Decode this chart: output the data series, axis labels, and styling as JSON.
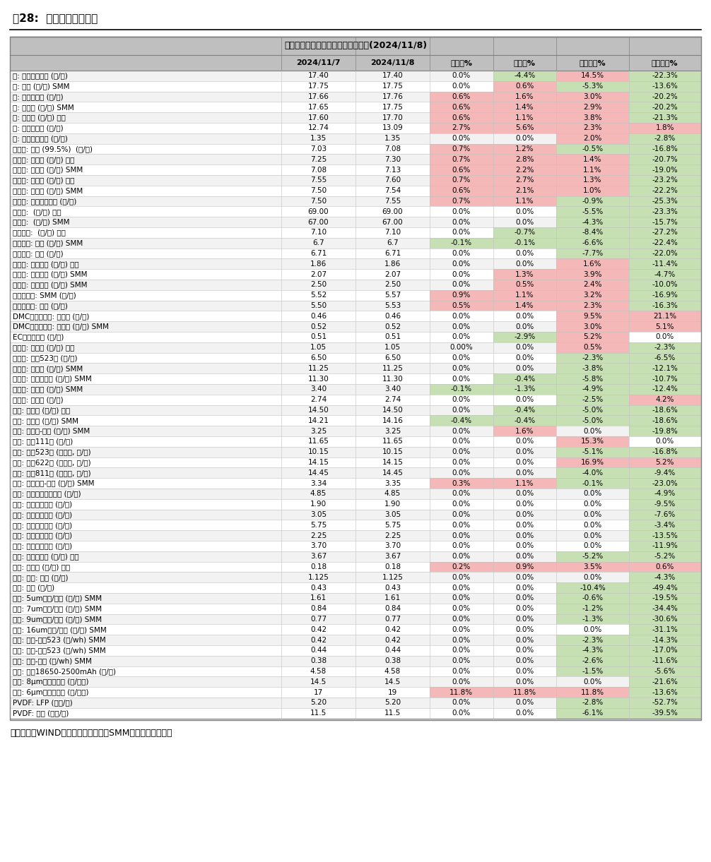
{
  "title": "【东吴电新】锂电材料价格每日涨跌(2024/11/8)",
  "fig_label": "图28:  锂电材料价格情况",
  "footer": "数据来源：WIND、鑫椤资讯、百川、SMM、东吴证券研究所",
  "headers": [
    "",
    "2024/11/7",
    "2024/11/8",
    "日环比%",
    "周环比%",
    "月初环比%",
    "年初环比%"
  ],
  "rows": [
    [
      "钴: 长江有色市场 (万/吨)",
      "17.40",
      "17.40",
      "0.0%",
      "-4.4%",
      "14.5%",
      "-22.3%"
    ],
    [
      "钴: 钴粉 (万/吨) SMM",
      "17.75",
      "17.75",
      "0.0%",
      "0.6%",
      "-5.3%",
      "-13.6%"
    ],
    [
      "钴: 金川赞比亚 (万/吨)",
      "17.66",
      "17.76",
      "0.6%",
      "1.6%",
      "3.0%",
      "-20.2%"
    ],
    [
      "钴: 电解钴 (万/吨) SMM",
      "17.65",
      "17.75",
      "0.6%",
      "1.4%",
      "2.9%",
      "-20.2%"
    ],
    [
      "钴: 金属钴 (万/吨) 百川",
      "17.60",
      "17.70",
      "0.6%",
      "1.1%",
      "3.8%",
      "-21.3%"
    ],
    [
      "镍: 上海金属网 (万/吨)",
      "12.74",
      "13.09",
      "2.7%",
      "5.6%",
      "2.3%",
      "1.8%"
    ],
    [
      "锰: 长江有色市场 (万/吨)",
      "1.35",
      "1.35",
      "0.0%",
      "0.0%",
      "2.0%",
      "-2.8%"
    ],
    [
      "碳酸锂: 国产 (99.5%)  (万/吨)",
      "7.03",
      "7.08",
      "0.7%",
      "1.2%",
      "-0.5%",
      "-16.8%"
    ],
    [
      "碳酸锂: 工业级 (万/吨) 百川",
      "7.25",
      "7.30",
      "0.7%",
      "2.8%",
      "1.4%",
      "-20.7%"
    ],
    [
      "碳酸锂: 工业级 (万/吨) SMM",
      "7.08",
      "7.13",
      "0.6%",
      "2.2%",
      "1.1%",
      "-19.0%"
    ],
    [
      "碳酸锂: 电池级 (万/吨) 百川",
      "7.55",
      "7.60",
      "0.7%",
      "2.7%",
      "1.3%",
      "-23.2%"
    ],
    [
      "碳酸锂: 电池级 (万/吨) SMM",
      "7.50",
      "7.54",
      "0.6%",
      "2.1%",
      "1.0%",
      "-22.2%"
    ],
    [
      "碳酸锂: 国产主流厂商 (万/吨)",
      "7.50",
      "7.55",
      "0.7%",
      "1.1%",
      "-0.9%",
      "-25.3%"
    ],
    [
      "金属锂:  (万/吨) 百川",
      "69.00",
      "69.00",
      "0.0%",
      "0.0%",
      "-5.5%",
      "-23.3%"
    ],
    [
      "金属锂:  (万/吨) SMM",
      "67.00",
      "67.00",
      "0.0%",
      "0.0%",
      "-4.3%",
      "-15.7%"
    ],
    [
      "氢氧化锂:  (万/吨) 百川",
      "7.10",
      "7.10",
      "0.0%",
      "-0.7%",
      "-8.4%",
      "-27.2%"
    ],
    [
      "氢氧化锂: 国产 (万/吨) SMM",
      "6.7",
      "6.7",
      "-0.1%",
      "-0.1%",
      "-6.6%",
      "-22.4%"
    ],
    [
      "氢氧化锂: 国产 (万/吨)",
      "6.71",
      "6.71",
      "0.0%",
      "0.0%",
      "-7.7%",
      "-22.0%"
    ],
    [
      "电解液: 磷酸铁锂 (万/吨) 百川",
      "1.86",
      "1.86",
      "0.0%",
      "0.0%",
      "1.6%",
      "-11.4%"
    ],
    [
      "电解液: 磷酸铁锂 (万/吨) SMM",
      "2.07",
      "2.07",
      "0.0%",
      "1.3%",
      "3.9%",
      "-4.7%"
    ],
    [
      "电解液: 三元动力 (万/吨) SMM",
      "2.50",
      "2.50",
      "0.0%",
      "0.5%",
      "2.4%",
      "-10.0%"
    ],
    [
      "六氟磷酸锂: SMM (万/吨)",
      "5.52",
      "5.57",
      "0.9%",
      "1.1%",
      "3.2%",
      "-16.9%"
    ],
    [
      "六氟磷酸锂: 百川 (万/吨)",
      "5.50",
      "5.53",
      "0.5%",
      "1.4%",
      "2.3%",
      "-16.3%"
    ],
    [
      "DMC碳酸二甲酯: 工业级 (万/吨)",
      "0.46",
      "0.46",
      "0.0%",
      "0.0%",
      "9.5%",
      "21.1%"
    ],
    [
      "DMC碳酸二甲酯: 电池级 (万/吨) SMM",
      "0.52",
      "0.52",
      "0.0%",
      "0.0%",
      "3.0%",
      "5.1%"
    ],
    [
      "EC碳酸乙烯酯 (万/吨)",
      "0.51",
      "0.51",
      "0.0%",
      "-2.9%",
      "5.2%",
      "0.0%"
    ],
    [
      "前驱体: 磷酸铁 (万/吨) 百川",
      "1.05",
      "1.05",
      "0.00%",
      "0.0%",
      "0.5%",
      "-2.3%"
    ],
    [
      "前驱体: 三元523型 (万/吨)",
      "6.50",
      "6.50",
      "0.0%",
      "0.0%",
      "-2.3%",
      "-6.5%"
    ],
    [
      "前驱体: 氧化钴 (万/吨) SMM",
      "11.25",
      "11.25",
      "0.0%",
      "0.0%",
      "-3.8%",
      "-12.1%"
    ],
    [
      "前驱体: 四氧化三钴 (万/吨) SMM",
      "11.30",
      "11.30",
      "0.0%",
      "-0.4%",
      "-5.8%",
      "-10.7%"
    ],
    [
      "前驱体: 氯化钴 (万/吨) SMM",
      "3.40",
      "3.40",
      "-0.1%",
      "-1.3%",
      "-4.9%",
      "-12.4%"
    ],
    [
      "前驱体: 硫酸镍 (万/吨)",
      "2.74",
      "2.74",
      "0.0%",
      "0.0%",
      "-2.5%",
      "4.2%"
    ],
    [
      "正极: 钴酸锂 (万/吨) 百川",
      "14.50",
      "14.50",
      "0.0%",
      "-0.4%",
      "-5.0%",
      "-18.6%"
    ],
    [
      "正极: 钴酸锂 (万/吨) SMM",
      "14.21",
      "14.16",
      "-0.4%",
      "-0.4%",
      "-5.0%",
      "-18.6%"
    ],
    [
      "正极: 锰酸锂-动力 (万/吨) SMM",
      "3.25",
      "3.25",
      "0.0%",
      "1.6%",
      "0.0%",
      "-19.8%"
    ],
    [
      "正极: 三元111型 (万/吨)",
      "11.65",
      "11.65",
      "0.0%",
      "0.0%",
      "15.3%",
      "0.0%"
    ],
    [
      "正极: 三元523型 (单晶型, 万/吨)",
      "10.15",
      "10.15",
      "0.0%",
      "0.0%",
      "-5.1%",
      "-16.8%"
    ],
    [
      "正极: 三元622型 (单晶型, 万/吨)",
      "14.15",
      "14.15",
      "0.0%",
      "0.0%",
      "16.9%",
      "5.2%"
    ],
    [
      "正极: 三元811型 (单晶型, 万/吨)",
      "14.45",
      "14.45",
      "0.0%",
      "0.0%",
      "-4.0%",
      "-9.4%"
    ],
    [
      "正极: 磷酸铁锂-动力 (万/吨) SMM",
      "3.34",
      "3.35",
      "0.3%",
      "1.1%",
      "-0.1%",
      "-23.0%"
    ],
    [
      "负极: 人造石墨高端动力 (万/吨)",
      "4.85",
      "4.85",
      "0.0%",
      "0.0%",
      "0.0%",
      "-4.9%"
    ],
    [
      "负极: 人造石墨低端 (万/吨)",
      "1.90",
      "1.90",
      "0.0%",
      "0.0%",
      "0.0%",
      "-9.5%"
    ],
    [
      "负极: 人造石墨中端 (万/吨)",
      "3.05",
      "3.05",
      "0.0%",
      "0.0%",
      "0.0%",
      "-7.6%"
    ],
    [
      "负极: 天然石墨高端 (万/吨)",
      "5.75",
      "5.75",
      "0.0%",
      "0.0%",
      "0.0%",
      "-3.4%"
    ],
    [
      "负极: 天然石墨低端 (万/吨)",
      "2.25",
      "2.25",
      "0.0%",
      "0.0%",
      "0.0%",
      "-13.5%"
    ],
    [
      "负极: 天然石墨中端 (万/吨)",
      "3.70",
      "3.70",
      "0.0%",
      "0.0%",
      "0.0%",
      "-11.9%"
    ],
    [
      "负极: 碳负极材料 (万/吨) 百川",
      "3.67",
      "3.67",
      "0.0%",
      "0.0%",
      "-5.2%",
      "-5.2%"
    ],
    [
      "负极: 石油焦 (万/吨) 百川",
      "0.18",
      "0.18",
      "0.2%",
      "0.9%",
      "3.5%",
      "0.6%"
    ],
    [
      "隔膜: 湿法: 百川 (元/平)",
      "1.125",
      "1.125",
      "0.0%",
      "0.0%",
      "0.0%",
      "-4.3%"
    ],
    [
      "隔膜: 干法 (元/平)",
      "0.43",
      "0.43",
      "0.0%",
      "0.0%",
      "-10.4%",
      "-49.4%"
    ],
    [
      "隔膜: 5um湿法/国产 (元/平) SMM",
      "1.61",
      "1.61",
      "0.0%",
      "0.0%",
      "-0.6%",
      "-19.5%"
    ],
    [
      "隔膜: 7um湿法/国产 (元/平) SMM",
      "0.84",
      "0.84",
      "0.0%",
      "0.0%",
      "-1.2%",
      "-34.4%"
    ],
    [
      "隔膜: 9um湿法/国产 (元/平) SMM",
      "0.77",
      "0.77",
      "0.0%",
      "0.0%",
      "-1.3%",
      "-30.6%"
    ],
    [
      "隔膜: 16um干法/国产 (元/平) SMM",
      "0.42",
      "0.42",
      "0.0%",
      "0.0%",
      "0.0%",
      "-31.1%"
    ],
    [
      "电池: 方形-三元523 (元/wh) SMM",
      "0.42",
      "0.42",
      "0.0%",
      "0.0%",
      "-2.3%",
      "-14.3%"
    ],
    [
      "电池: 软包-三元523 (元/wh) SMM",
      "0.44",
      "0.44",
      "0.0%",
      "0.0%",
      "-4.3%",
      "-17.0%"
    ],
    [
      "电池: 方形-铁锂 (元/wh) SMM",
      "0.38",
      "0.38",
      "0.0%",
      "0.0%",
      "-2.6%",
      "-11.6%"
    ],
    [
      "电池: 圆柱18650-2500mAh (元/支)",
      "4.58",
      "4.58",
      "0.0%",
      "0.0%",
      "-1.5%",
      "-5.6%"
    ],
    [
      "铜箔: 8μm国产加工费 (元/公斤)",
      "14.5",
      "14.5",
      "0.0%",
      "0.0%",
      "0.0%",
      "-21.6%"
    ],
    [
      "铜箔: 6μm国产加工费 (元/公斤)",
      "17",
      "19",
      "11.8%",
      "11.8%",
      "11.8%",
      "-13.6%"
    ],
    [
      "PVDF: LFP (万元/吨)",
      "5.20",
      "5.20",
      "0.0%",
      "0.0%",
      "-2.8%",
      "-52.7%"
    ],
    [
      "PVDF: 三元 (万元/吨)",
      "11.5",
      "11.5",
      "0.0%",
      "0.0%",
      "-6.1%",
      "-39.5%"
    ]
  ]
}
